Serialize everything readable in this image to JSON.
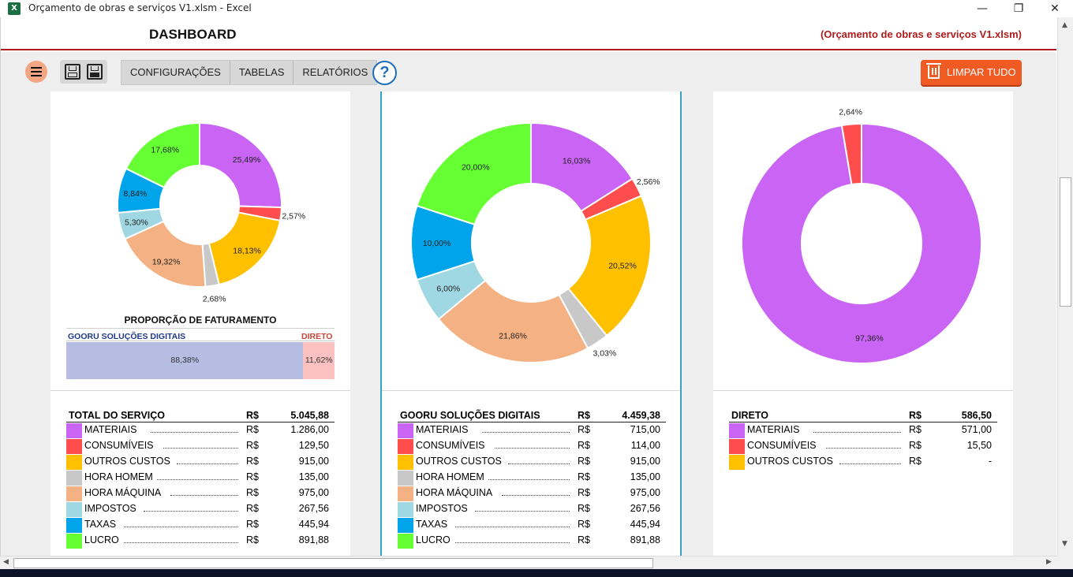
{
  "window": {
    "title": "Orçamento de obras e serviços V1.xlsm - Excel",
    "app_icon": "X",
    "minimize": "—",
    "maximize": "❐",
    "close": "✕"
  },
  "header": {
    "title": "DASHBOARD",
    "file_label": "(Orçamento de obras e serviços V1.xlsm)"
  },
  "toolbar": {
    "menu_icon": "menu-icon",
    "save_icon": "save-icon",
    "save_as_icon": "save-as-icon",
    "nav": [
      "CONFIGURAÇÕES",
      "TABELAS",
      "RELATÓRIOS"
    ],
    "help": "?",
    "clear_all": "LIMPAR TUDO"
  },
  "colors": {
    "MATERIAIS": "#c964f4",
    "CONSUMÍVEIS": "#ff4d4d",
    "OUTROS CUSTOS": "#ffc000",
    "HORA HOMEM": "#c8c8c8",
    "HORA MÁQUINA": "#f4b183",
    "IMPOSTOS": "#9fd7e2",
    "TAXAS": "#00a4ea",
    "LUCRO": "#66ff33"
  },
  "proportion": {
    "title": "PROPORÇÃO DE FATURAMENTO",
    "gooru_label": "GOORU SOLUÇÕES DIGITAIS",
    "direto_label": "DIRETO",
    "gooru_value": "88,38%",
    "direto_value": "11,62%",
    "gooru_fraction": 0.8838
  },
  "chart_data": [
    {
      "type": "pie",
      "labels": [
        "MATERIAIS",
        "CONSUMÍVEIS",
        "OUTROS CUSTOS",
        "HORA HOMEM",
        "HORA MÁQUINA",
        "IMPOSTOS",
        "TAXAS",
        "LUCRO"
      ],
      "values": [
        25.49,
        2.57,
        18.13,
        2.68,
        19.32,
        5.3,
        8.84,
        17.68
      ],
      "value_labels": [
        "25,49%",
        "2,57%",
        "18,13%",
        "2,68%",
        "19,32%",
        "5,30%",
        "8,84%",
        "17,68%"
      ]
    },
    {
      "type": "pie",
      "labels": [
        "MATERIAIS",
        "CONSUMÍVEIS",
        "OUTROS CUSTOS",
        "HORA HOMEM",
        "HORA MÁQUINA",
        "IMPOSTOS",
        "TAXAS",
        "LUCRO"
      ],
      "values": [
        16.03,
        2.56,
        20.52,
        3.03,
        21.86,
        6.0,
        10.0,
        20.0
      ],
      "value_labels": [
        "16,03%",
        "2,56%",
        "20,52%",
        "3,03%",
        "21,86%",
        "6,00%",
        "10,00%",
        "20,00%"
      ]
    },
    {
      "type": "pie",
      "labels": [
        "MATERIAIS",
        "CONSUMÍVEIS"
      ],
      "values": [
        97.36,
        2.64
      ],
      "value_labels": [
        "97,36%",
        "2,64%"
      ]
    }
  ],
  "tables": [
    {
      "title": "TOTAL DO SERVIÇO",
      "currency": "R$",
      "total": "5.045,88",
      "rows": [
        {
          "name": "MATERIAIS",
          "currency": "R$",
          "value": "1.286,00"
        },
        {
          "name": "CONSUMÍVEIS",
          "currency": "R$",
          "value": "129,50"
        },
        {
          "name": "OUTROS CUSTOS",
          "currency": "R$",
          "value": "915,00"
        },
        {
          "name": "HORA HOMEM",
          "currency": "R$",
          "value": "135,00"
        },
        {
          "name": "HORA MÁQUINA",
          "currency": "R$",
          "value": "975,00"
        },
        {
          "name": "IMPOSTOS",
          "currency": "R$",
          "value": "267,56"
        },
        {
          "name": "TAXAS",
          "currency": "R$",
          "value": "445,94"
        },
        {
          "name": "LUCRO",
          "currency": "R$",
          "value": "891,88"
        }
      ]
    },
    {
      "title": "GOORU SOLUÇÕES DIGITAIS",
      "currency": "R$",
      "total": "4.459,38",
      "rows": [
        {
          "name": "MATERIAIS",
          "currency": "R$",
          "value": "715,00"
        },
        {
          "name": "CONSUMÍVEIS",
          "currency": "R$",
          "value": "114,00"
        },
        {
          "name": "OUTROS CUSTOS",
          "currency": "R$",
          "value": "915,00"
        },
        {
          "name": "HORA HOMEM",
          "currency": "R$",
          "value": "135,00"
        },
        {
          "name": "HORA MÁQUINA",
          "currency": "R$",
          "value": "975,00"
        },
        {
          "name": "IMPOSTOS",
          "currency": "R$",
          "value": "267,56"
        },
        {
          "name": "TAXAS",
          "currency": "R$",
          "value": "445,94"
        },
        {
          "name": "LUCRO",
          "currency": "R$",
          "value": "891,88"
        }
      ]
    },
    {
      "title": "DIRETO",
      "currency": "R$",
      "total": "586,50",
      "rows": [
        {
          "name": "MATERIAIS",
          "currency": "R$",
          "value": "571,00"
        },
        {
          "name": "CONSUMÍVEIS",
          "currency": "R$",
          "value": "15,50"
        },
        {
          "name": "OUTROS CUSTOS",
          "currency": "R$",
          "value": "-"
        }
      ]
    }
  ],
  "scroll": {
    "up": "▲",
    "down": "▼",
    "left": "◀",
    "right": "▶"
  }
}
